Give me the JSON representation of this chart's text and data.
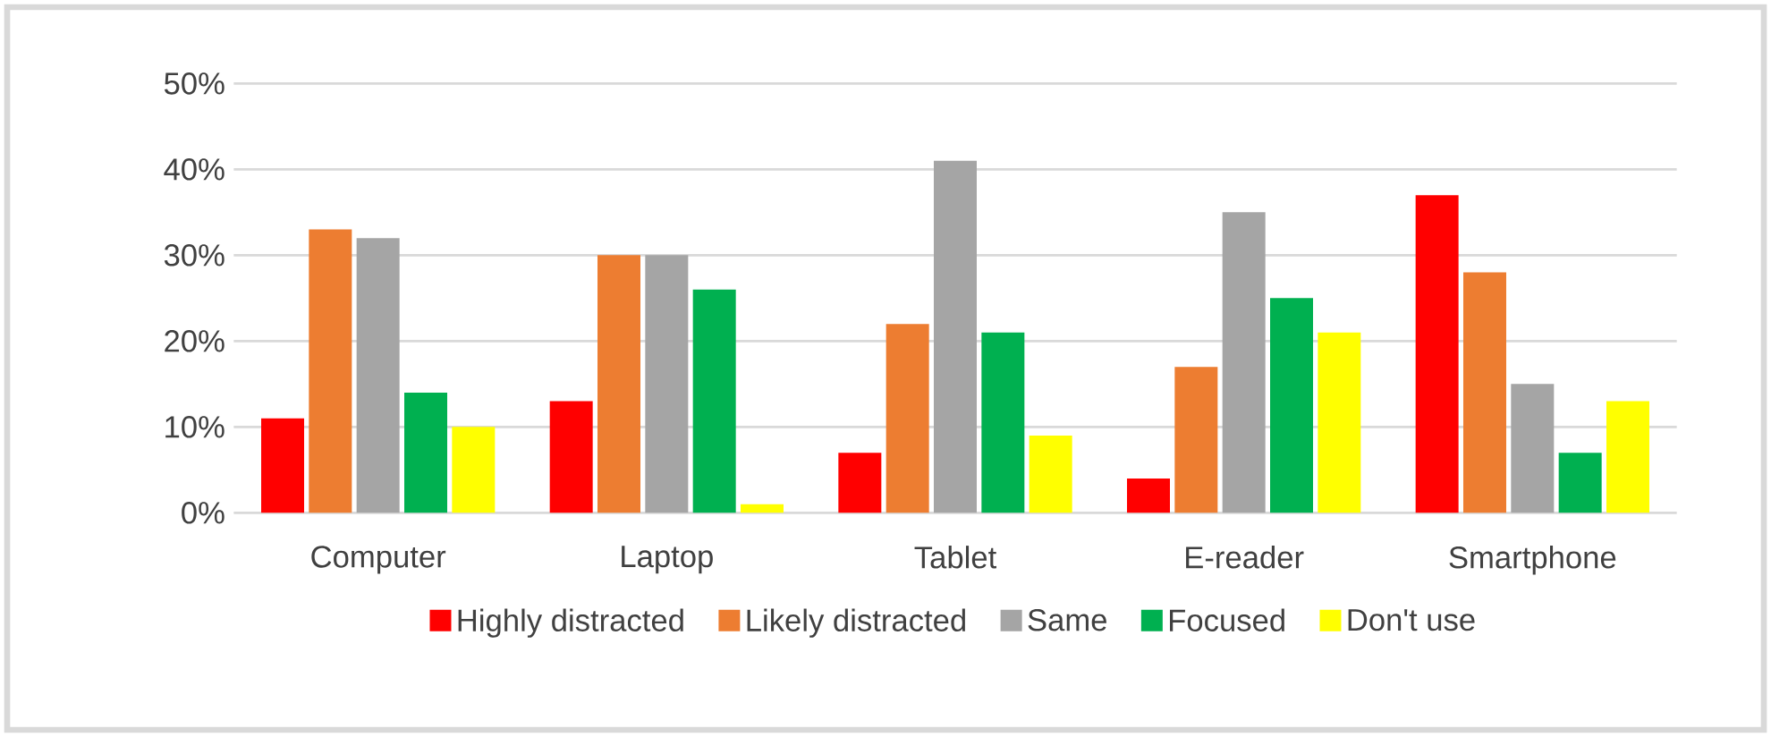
{
  "chart_data": {
    "type": "bar",
    "categories": [
      "Computer",
      "Laptop",
      "Tablet",
      "E-reader",
      "Smartphone"
    ],
    "series": [
      {
        "name": "Highly distracted",
        "color": "#ff0000",
        "values": [
          11,
          13,
          7,
          4,
          37
        ]
      },
      {
        "name": "Likely distracted",
        "color": "#ed7d31",
        "values": [
          33,
          30,
          22,
          17,
          28
        ]
      },
      {
        "name": "Same",
        "color": "#a5a5a5",
        "values": [
          32,
          30,
          41,
          35,
          15
        ]
      },
      {
        "name": "Focused",
        "color": "#00b050",
        "values": [
          14,
          26,
          21,
          25,
          7
        ]
      },
      {
        "name": "Don't use",
        "color": "#ffff00",
        "values": [
          10,
          1,
          9,
          21,
          13
        ]
      }
    ],
    "ylim": [
      0,
      50
    ],
    "yticks": [
      {
        "value": 0,
        "label": "0%"
      },
      {
        "value": 10,
        "label": "10%"
      },
      {
        "value": 20,
        "label": "20%"
      },
      {
        "value": 30,
        "label": "30%"
      },
      {
        "value": 40,
        "label": "40%"
      },
      {
        "value": 50,
        "label": "50%"
      }
    ],
    "grid": "y",
    "legend": "bottom"
  }
}
